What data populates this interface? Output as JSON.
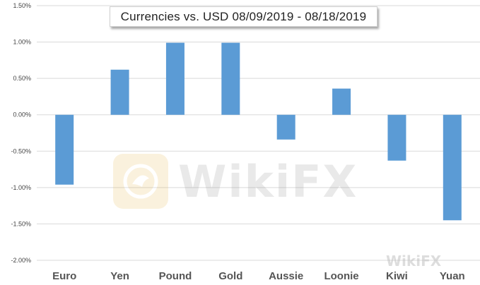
{
  "chart_data": {
    "type": "bar",
    "title": "Currencies vs. USD 08/09/2019 - 08/18/2019",
    "xlabel": "",
    "ylabel": "",
    "categories": [
      "Euro",
      "Yen",
      "Pound",
      "Gold",
      "Aussie",
      "Loonie",
      "Kiwi",
      "Yuan"
    ],
    "values": [
      -0.96,
      0.62,
      0.99,
      0.99,
      -0.34,
      0.36,
      -0.63,
      -1.45
    ],
    "ylim": [
      -2.0,
      1.5
    ],
    "yticks": [
      1.5,
      1.0,
      0.5,
      0.0,
      -0.5,
      -1.0,
      -1.5,
      -2.0
    ],
    "ytick_labels": [
      "1.50%",
      "1.00%",
      "0.50%",
      "0.00%",
      "-0.50%",
      "-1.00%",
      "-1.50%",
      "-2.00%"
    ],
    "grid": true,
    "legend": "none",
    "bar_color": "#5b9bd5",
    "grid_color": "#d9d9d9"
  },
  "watermark": {
    "text": "WikiFX",
    "small_text": "WikiFX"
  }
}
